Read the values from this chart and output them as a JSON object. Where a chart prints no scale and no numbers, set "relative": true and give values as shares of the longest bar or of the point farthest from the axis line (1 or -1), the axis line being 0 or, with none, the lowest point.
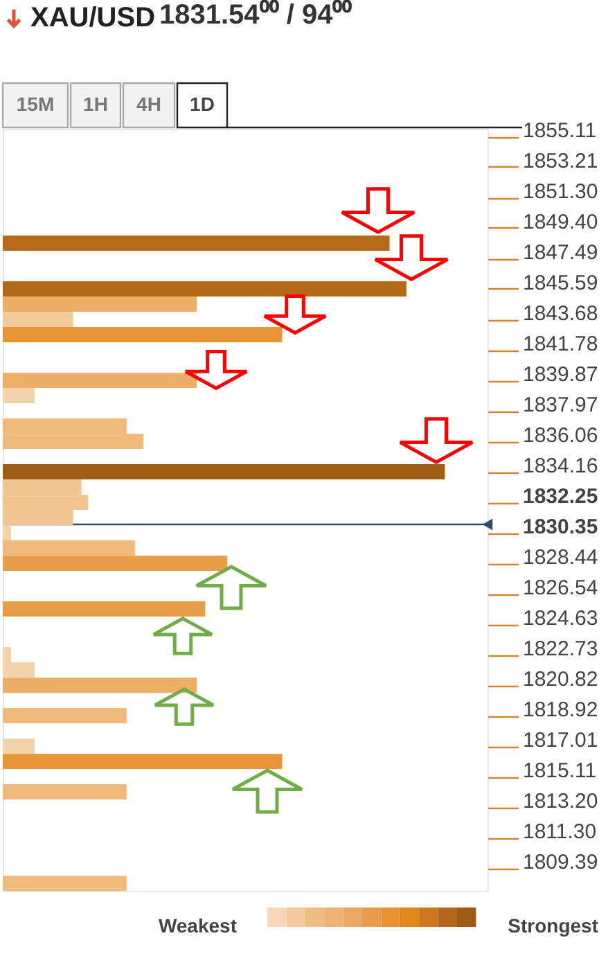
{
  "chart_data": {
    "type": "bar",
    "orientation": "horizontal",
    "relative": true,
    "title": "XAU/USD",
    "subtitle": "1831.54⁰⁰ / 94⁰⁰",
    "x": [
      1848.45,
      1845.59,
      1844.64,
      1843.68,
      1842.73,
      1839.87,
      1838.92,
      1837.02,
      1836.06,
      1834.16,
      1833.21,
      1832.25,
      1831.3,
      1830.35,
      1829.4,
      1828.44,
      1825.59,
      1822.73,
      1821.78,
      1820.82,
      1818.92,
      1817.01,
      1816.06,
      1814.16,
      1808.44
    ],
    "values": [
      0.875,
      0.913,
      0.439,
      0.159,
      0.632,
      0.439,
      0.072,
      0.28,
      0.318,
      1,
      0.178,
      0.193,
      0.159,
      0.019,
      0.299,
      0.508,
      0.458,
      0.019,
      0.072,
      0.439,
      0.28,
      0.072,
      0.632,
      0.28,
      0.28
    ],
    "colors": [
      "#b56c1a",
      "#b36a18",
      "#edae68",
      "#f3c899",
      "#e79536",
      "#edae68",
      "#f5d3aa",
      "#efba7c",
      "#efba7c",
      "#a05d14",
      "#f2c590",
      "#f2c590",
      "#f2c590",
      "#f5d3aa",
      "#efba7c",
      "#e89e48",
      "#e89e48",
      "#f5d3aa",
      "#f5d3aa",
      "#edae68",
      "#efba7c",
      "#f5d3aa",
      "#e79536",
      "#efba7c",
      "#efba7c"
    ],
    "ylim": [
      1807.97,
      1855.59
    ],
    "yticks": [
      1855.11,
      1853.21,
      {
        "value": 1851.3,
        "label": "1851.30"
      },
      {
        "value": 1849.4,
        "label": "1849.40"
      },
      1847.49,
      1845.59,
      1843.68,
      1841.78,
      1839.87,
      1837.97,
      1836.06,
      1834.16,
      1832.25,
      1830.35,
      1828.44,
      1826.54,
      1824.63,
      1822.73,
      1820.82,
      1818.92,
      1817.01,
      1815.11,
      {
        "value": 1813.2,
        "label": "1813.20"
      },
      {
        "value": 1811.3,
        "label": "1811.30"
      },
      1809.39
    ],
    "ref_lines": [
      {
        "axis": "y",
        "value": 1830.87,
        "color": "#2c4a6b"
      }
    ],
    "annotations": [
      "15M",
      "1H",
      "4H",
      "1D",
      "Weakest",
      "Strongest"
    ]
  }
}
